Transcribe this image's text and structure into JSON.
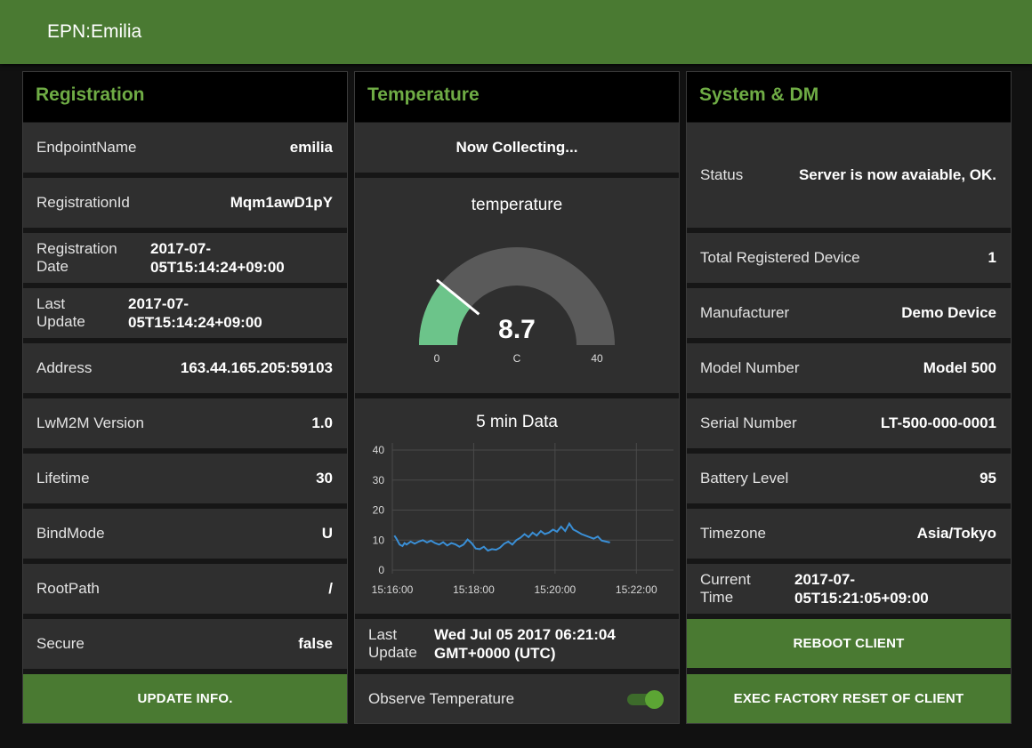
{
  "app": {
    "title": "EPN:Emilia"
  },
  "registration": {
    "title": "Registration",
    "endpoint_name": {
      "label": "EndpointName",
      "value": "emilia"
    },
    "registration_id": {
      "label": "RegistrationId",
      "value": "Mqm1awD1pY"
    },
    "registration_date": {
      "label_1": "Registration",
      "label_2": "Date",
      "value_1": "2017-07-",
      "value_2": "05T15:14:24+09:00"
    },
    "last_update": {
      "label_1": "Last",
      "label_2": "Update",
      "value_1": "2017-07-",
      "value_2": "05T15:14:24+09:00"
    },
    "address": {
      "label": "Address",
      "value": "163.44.165.205:59103"
    },
    "lwm2m_version": {
      "label": "LwM2M Version",
      "value": "1.0"
    },
    "lifetime": {
      "label": "Lifetime",
      "value": "30"
    },
    "bind_mode": {
      "label": "BindMode",
      "value": "U"
    },
    "root_path": {
      "label": "RootPath",
      "value": "/"
    },
    "secure": {
      "label": "Secure",
      "value": "false"
    },
    "update_button": "UPDATE INFO."
  },
  "temperature": {
    "title": "Temperature",
    "status": "Now Collecting...",
    "gauge": {
      "title": "temperature",
      "value": 8.7,
      "value_text": "8.7",
      "min": 0,
      "max": 40,
      "min_text": "0",
      "max_text": "40",
      "unit": "C",
      "fill_color": "#6cc48a",
      "track_color": "#5a5a5a"
    },
    "last_update": {
      "label_1": "Last",
      "label_2": "Update",
      "value_1": "Wed Jul 05 2017 06:21:04",
      "value_2": "GMT+0000 (UTC)"
    },
    "observe": {
      "label": "Observe Temperature",
      "enabled": true
    }
  },
  "chart_data": {
    "type": "line",
    "title": "5 min Data",
    "xlabel": "",
    "ylabel": "",
    "ylim": [
      0,
      40
    ],
    "yticks": [
      "40",
      "30",
      "20",
      "10",
      "0"
    ],
    "xticks": [
      "15:16:00",
      "15:18:00",
      "15:20:00",
      "15:22:00"
    ],
    "xlim_minutes": [
      0,
      6.3
    ],
    "grid": true,
    "line_color": "#3a8fd6",
    "series": [
      {
        "x_minutes": [
          0.05,
          0.1,
          0.18,
          0.25,
          0.3,
          0.35,
          0.45,
          0.55,
          0.65,
          0.75,
          0.85,
          0.95,
          1.05,
          1.15,
          1.25,
          1.35,
          1.45,
          1.55,
          1.65,
          1.75,
          1.85,
          1.95,
          2.05,
          2.15,
          2.25,
          2.35,
          2.45,
          2.55,
          2.65,
          2.75,
          2.85,
          2.95,
          3.05,
          3.15,
          3.25,
          3.35,
          3.45,
          3.55,
          3.65,
          3.75,
          3.85,
          3.95,
          4.05,
          4.15,
          4.25,
          4.35,
          4.45,
          4.55,
          4.65,
          4.75,
          4.85,
          4.95,
          5.05,
          5.15,
          5.25,
          5.35
        ],
        "values": [
          11.5,
          10.5,
          8.5,
          8.0,
          9.0,
          8.5,
          9.5,
          8.8,
          9.5,
          10.0,
          9.2,
          9.8,
          9.0,
          8.5,
          9.3,
          8.2,
          9.0,
          8.6,
          7.8,
          8.5,
          10.2,
          9.0,
          7.2,
          7.0,
          7.8,
          6.5,
          7.0,
          6.8,
          7.5,
          8.8,
          9.5,
          8.5,
          10.0,
          10.8,
          12.0,
          11.0,
          12.5,
          11.5,
          13.0,
          12.0,
          12.5,
          13.5,
          12.8,
          14.5,
          13.0,
          15.5,
          13.5,
          12.8,
          12.0,
          11.5,
          11.0,
          10.5,
          11.2,
          9.8,
          9.5,
          9.2
        ]
      }
    ]
  },
  "system": {
    "title": "System & DM",
    "status": {
      "label": "Status",
      "value": "Server is now avaiable, OK."
    },
    "total_registered": {
      "label": "Total Registered Device",
      "value": "1"
    },
    "manufacturer": {
      "label": "Manufacturer",
      "value": "Demo Device"
    },
    "model_number": {
      "label": "Model Number",
      "value": "Model 500"
    },
    "serial_number": {
      "label": "Serial Number",
      "value": "LT-500-000-0001"
    },
    "battery_level": {
      "label": "Battery Level",
      "value": "95"
    },
    "timezone": {
      "label": "Timezone",
      "value": "Asia/Tokyo"
    },
    "current_time": {
      "label_1": "Current",
      "label_2": "Time",
      "value_1": "2017-07-",
      "value_2": "05T15:21:05+09:00"
    },
    "reboot_button": "REBOOT CLIENT",
    "factory_reset_button": "EXEC FACTORY RESET OF CLIENT"
  }
}
